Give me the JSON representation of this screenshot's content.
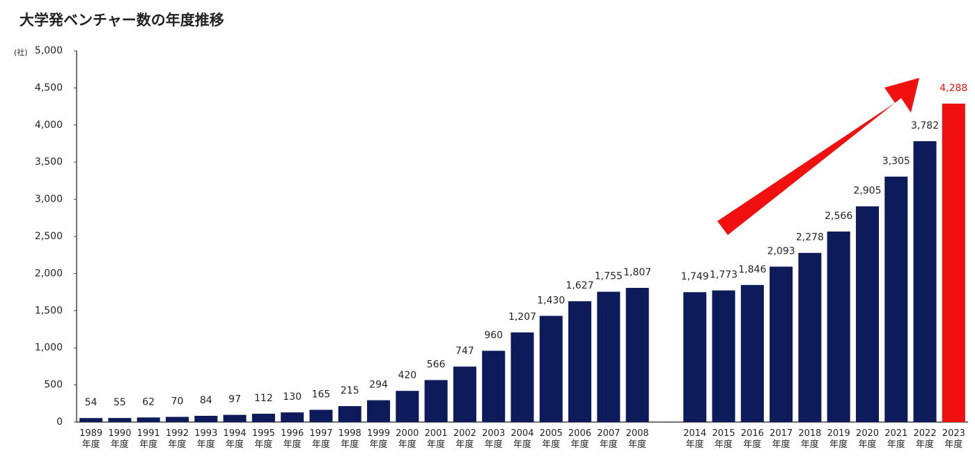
{
  "chart_data": {
    "type": "bar",
    "title": "大学発ベンチャー数の年度推移",
    "y_label": "(社)",
    "categories": [
      "1989年度",
      "1990年度",
      "1991年度",
      "1992年度",
      "1993年度",
      "1994年度",
      "1995年度",
      "1996年度",
      "1997年度",
      "1998年度",
      "1999年度",
      "2000年度",
      "2001年度",
      "2002年度",
      "2003年度",
      "2004年度",
      "2005年度",
      "2006年度",
      "2007年度",
      "2008年度",
      null,
      "2014年度",
      "2015年度",
      "2016年度",
      "2017年度",
      "2018年度",
      "2019年度",
      "2020年度",
      "2021年度",
      "2022年度",
      "2023年度"
    ],
    "values": [
      54,
      55,
      62,
      70,
      84,
      97,
      112,
      130,
      165,
      215,
      294,
      420,
      566,
      747,
      960,
      1207,
      1430,
      1627,
      1755,
      1807,
      null,
      1749,
      1773,
      1846,
      2093,
      2278,
      2566,
      2905,
      3305,
      3782,
      4288
    ],
    "value_labels": [
      "54",
      "55",
      "62",
      "70",
      "84",
      "97",
      "112",
      "130",
      "165",
      "215",
      "294",
      "420",
      "566",
      "747",
      "960",
      "1,207",
      "1,430",
      "1,627",
      "1,755",
      "1,807",
      null,
      "1,749",
      "1,773",
      "1,846",
      "2,093",
      "2,278",
      "2,566",
      "2,905",
      "3,305",
      "3,782",
      "4,288"
    ],
    "colors": [
      "#0e1b5a",
      "#0e1b5a",
      "#0e1b5a",
      "#0e1b5a",
      "#0e1b5a",
      "#0e1b5a",
      "#0e1b5a",
      "#0e1b5a",
      "#0e1b5a",
      "#0e1b5a",
      "#0e1b5a",
      "#0e1b5a",
      "#0e1b5a",
      "#0e1b5a",
      "#0e1b5a",
      "#0e1b5a",
      "#0e1b5a",
      "#0e1b5a",
      "#0e1b5a",
      "#0e1b5a",
      null,
      "#0e1b5a",
      "#0e1b5a",
      "#0e1b5a",
      "#0e1b5a",
      "#0e1b5a",
      "#0e1b5a",
      "#0e1b5a",
      "#0e1b5a",
      "#0e1b5a",
      "#f01010"
    ],
    "ylim": [
      0,
      5000
    ],
    "yticks": [
      0,
      500,
      {
        "value": 1000,
        "label": "1,000"
      },
      {
        "value": 1500,
        "label": "1,500"
      },
      {
        "value": 2000,
        "label": "2,000"
      },
      {
        "value": 2500,
        "label": "2,500"
      },
      {
        "value": 3000,
        "label": "3,000"
      },
      {
        "value": 3500,
        "label": "3,500"
      },
      {
        "value": 4000,
        "label": "4,000"
      },
      {
        "value": 4500,
        "label": "4,500"
      },
      {
        "value": 5000,
        "label": "5,000"
      }
    ],
    "grid": false
  }
}
